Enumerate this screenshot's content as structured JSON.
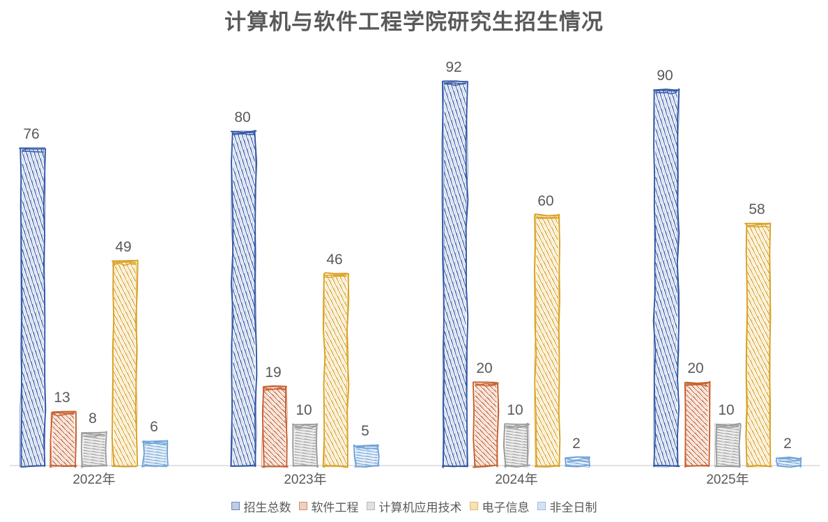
{
  "chart_data": {
    "type": "bar",
    "title": "计算机与软件工程学院研究生招生情况",
    "categories": [
      "2022年",
      "2023年",
      "2024年",
      "2025年"
    ],
    "series": [
      {
        "name": "招生总数",
        "color": "#3156A4",
        "values": [
          76,
          80,
          92,
          90
        ]
      },
      {
        "name": "软件工程",
        "color": "#C65F2E",
        "values": [
          13,
          19,
          20,
          20
        ]
      },
      {
        "name": "计算机应用技术",
        "color": "#9B9B9B",
        "values": [
          8,
          10,
          10,
          10
        ]
      },
      {
        "name": "电子信息",
        "color": "#D9A01F",
        "values": [
          49,
          46,
          60,
          58
        ]
      },
      {
        "name": "非全日制",
        "color": "#6FA3D8",
        "values": [
          6,
          5,
          2,
          2
        ]
      }
    ],
    "data_labels": true,
    "ylim": [
      0,
      100
    ],
    "grid": false,
    "legend_position": "bottom",
    "style": "hand-drawn-sketch-bars",
    "axis_color": "#D8D8D8",
    "text_color": "#595959",
    "background_color": "#FFFFFF"
  }
}
